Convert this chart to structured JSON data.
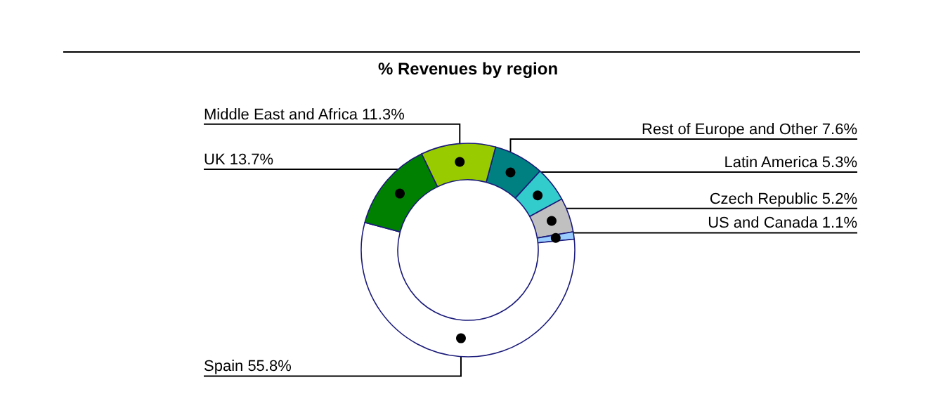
{
  "chart_data": {
    "type": "donut",
    "title": "% Revenues by region",
    "categories": [
      "Rest of Europe and Other",
      "Latin America",
      "Czech Republic",
      "US and Canada",
      "Spain",
      "UK",
      "Middle East and Africa"
    ],
    "values": [
      7.6,
      5.3,
      5.2,
      1.1,
      55.8,
      13.7,
      11.3
    ],
    "colors": [
      "#008080",
      "#33cccc",
      "#c0c0c0",
      "#99ccff",
      "#ffffff",
      "#008000",
      "#99cc00"
    ],
    "value_labels": [
      "7.6%",
      "5.3%",
      "5.2%",
      "1.1%",
      "55.8%",
      "13.7%",
      "11.3%"
    ],
    "legend": false
  }
}
